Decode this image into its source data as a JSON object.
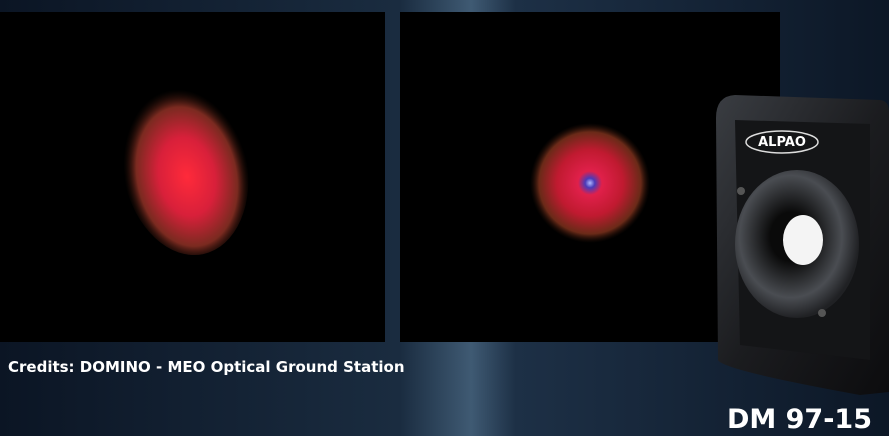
{
  "caption": "Credits: DOMINO - MEO Optical Ground Station",
  "product": "DM 97-15",
  "brand_logo": "ALPAO"
}
